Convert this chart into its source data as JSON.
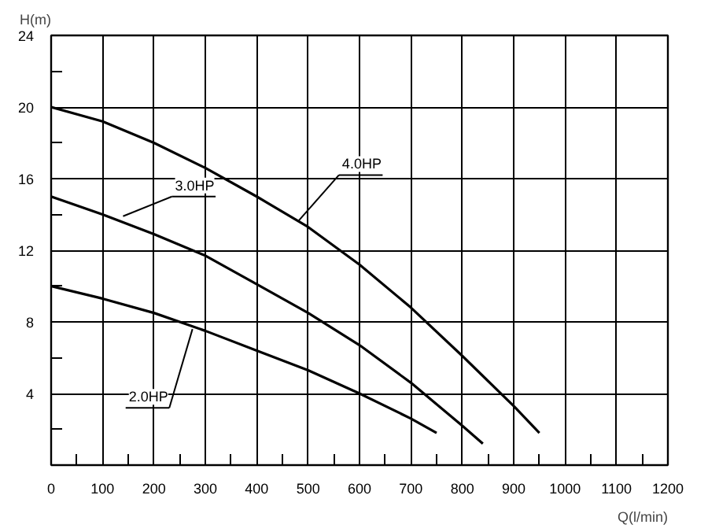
{
  "chart_data": {
    "type": "line",
    "xlabel": "Q(l/min)",
    "ylabel": "H(m)",
    "xlim": [
      0,
      1200
    ],
    "ylim": [
      0,
      24
    ],
    "xticks": [
      0,
      100,
      200,
      300,
      400,
      500,
      600,
      700,
      800,
      900,
      1000,
      1100,
      1200
    ],
    "yticks": [
      4,
      8,
      12,
      16,
      20,
      24
    ],
    "grid": true,
    "marker": "none",
    "line_style": "solid",
    "series": [
      {
        "color": "#000000",
        "x": [
          0,
          100,
          200,
          300,
          400,
          500,
          600,
          700,
          800,
          900,
          950
        ],
        "values": [
          20,
          19.2,
          18,
          16.6,
          15,
          13.3,
          11.2,
          8.8,
          6.1,
          3.3,
          1.8
        ]
      },
      {
        "color": "#000000",
        "x": [
          0,
          100,
          200,
          300,
          400,
          500,
          600,
          700,
          800,
          840
        ],
        "values": [
          15,
          14,
          12.9,
          11.7,
          10.1,
          8.5,
          6.7,
          4.6,
          2.2,
          1.2
        ]
      },
      {
        "color": "#000000",
        "x": [
          0,
          100,
          200,
          300,
          400,
          500,
          600,
          700,
          750
        ],
        "values": [
          10,
          9.3,
          8.5,
          7.5,
          6.4,
          5.3,
          4.0,
          2.6,
          1.8
        ]
      }
    ],
    "annotations": [
      {
        "text": "4.0HP",
        "x": 480,
        "y": 13.6
      },
      {
        "text": "3.0HP",
        "x": 140,
        "y": 13.9
      },
      {
        "text": "2.0HP",
        "x": 275,
        "y": 7.6
      }
    ]
  }
}
